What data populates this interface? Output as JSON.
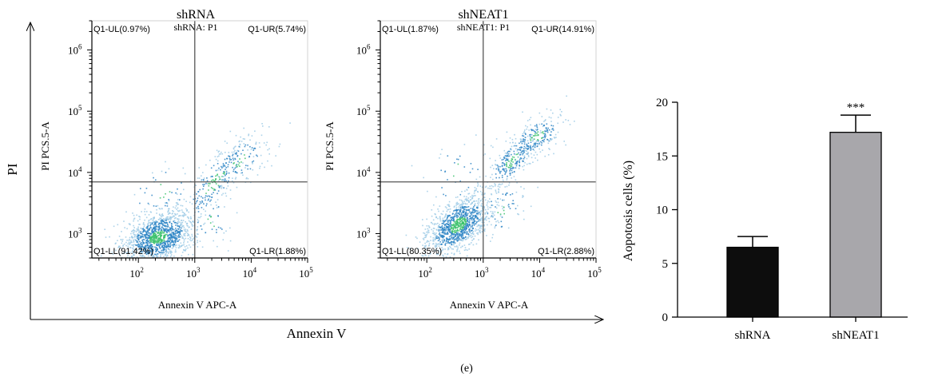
{
  "panel_label": "(e)",
  "outer_axes": {
    "ylabel": "PI",
    "xlabel": "Annexin V"
  },
  "colors": {
    "axis": "#000000",
    "bar_shrna": "#0d0d0d",
    "bar_shneat1": "#a8a7ab",
    "dots_light": "#9fcbe6",
    "dots_mid": "#2f86c5",
    "dots_dense": "#3cc26c",
    "gate_line": "#555555"
  },
  "chart_data": [
    {
      "type": "scatter",
      "title": "shRNA",
      "subtitle": "shRNA: P1",
      "xlabel": "Annexin V APC-A",
      "ylabel": "PI PCS.5-A",
      "x_scale": "log",
      "y_scale": "log",
      "xlim": [
        15,
        100000
      ],
      "ylim": [
        400,
        3000000
      ],
      "x_ticks": [
        {
          "base": "10",
          "exp": "2"
        },
        {
          "base": "10",
          "exp": "3"
        },
        {
          "base": "10",
          "exp": "4"
        },
        {
          "base": "10",
          "exp": "5"
        }
      ],
      "y_ticks": [
        {
          "base": "10",
          "exp": "3"
        },
        {
          "base": "10",
          "exp": "4"
        },
        {
          "base": "10",
          "exp": "5"
        },
        {
          "base": "10",
          "exp": "6"
        }
      ],
      "gate": {
        "x": 1000,
        "y": 7000
      },
      "quadrants": {
        "UL": "Q1-UL(0.97%)",
        "UR": "Q1-UR(5.74%)",
        "LL": "Q1-LL(91.42%)",
        "LR": "Q1-LR(1.88%)"
      },
      "quadrant_percent": {
        "UL": 0.97,
        "UR": 5.74,
        "LL": 91.42,
        "LR": 1.88
      },
      "population": [
        {
          "n": 1300,
          "cx": 2.35,
          "cy": 2.95,
          "sx": 0.32,
          "sy": 0.22,
          "r": 0.3
        },
        {
          "n": 220,
          "cx": 3.35,
          "cy": 3.85,
          "sx": 0.35,
          "sy": 0.38,
          "r": 0.8
        },
        {
          "n": 140,
          "cx": 3.8,
          "cy": 4.2,
          "sx": 0.28,
          "sy": 0.22,
          "r": 0.5
        },
        {
          "n": 40,
          "cx": 2.4,
          "cy": 3.7,
          "sx": 0.35,
          "sy": 0.25,
          "r": 0.2
        },
        {
          "n": 40,
          "cx": 3.3,
          "cy": 3.2,
          "sx": 0.2,
          "sy": 0.2,
          "r": 0.2
        }
      ]
    },
    {
      "type": "scatter",
      "title": "shNEAT1",
      "subtitle": "shNEAT1: P1",
      "xlabel": "Annexin V APC-A",
      "ylabel": "PI PCS.5-A",
      "x_scale": "log",
      "y_scale": "log",
      "xlim": [
        15,
        100000
      ],
      "ylim": [
        400,
        3000000
      ],
      "x_ticks": [
        {
          "base": "10",
          "exp": "2"
        },
        {
          "base": "10",
          "exp": "3"
        },
        {
          "base": "10",
          "exp": "4"
        },
        {
          "base": "10",
          "exp": "5"
        }
      ],
      "y_ticks": [
        {
          "base": "10",
          "exp": "3"
        },
        {
          "base": "10",
          "exp": "4"
        },
        {
          "base": "10",
          "exp": "5"
        },
        {
          "base": "10",
          "exp": "6"
        }
      ],
      "gate": {
        "x": 1000,
        "y": 7000
      },
      "quadrants": {
        "UL": "Q1-UL(1.87%)",
        "UR": "Q1-UR(14.91%)",
        "LL": "Q1-LL(80.35%)",
        "LR": "Q1-LR(2.88%)"
      },
      "quadrant_percent": {
        "UL": 1.87,
        "UR": 14.91,
        "LL": 80.35,
        "LR": 2.88
      },
      "population": [
        {
          "n": 1150,
          "cx": 2.55,
          "cy": 3.15,
          "sx": 0.3,
          "sy": 0.26,
          "r": 0.55
        },
        {
          "n": 260,
          "cx": 3.5,
          "cy": 4.2,
          "sx": 0.25,
          "sy": 0.25,
          "r": 0.75
        },
        {
          "n": 200,
          "cx": 3.95,
          "cy": 4.6,
          "sx": 0.25,
          "sy": 0.18,
          "r": 0.5
        },
        {
          "n": 40,
          "cx": 2.5,
          "cy": 4.0,
          "sx": 0.35,
          "sy": 0.3,
          "r": 0.2
        },
        {
          "n": 60,
          "cx": 3.3,
          "cy": 3.4,
          "sx": 0.25,
          "sy": 0.25,
          "r": 0.3
        }
      ]
    },
    {
      "type": "bar",
      "title": "",
      "xlabel": "",
      "ylabel": "Aopotosis cells (%)",
      "categories": [
        "shRNA",
        "shNEAT1"
      ],
      "values": [
        6.5,
        17.2
      ],
      "errors": [
        1.0,
        1.6
      ],
      "bar_colors": [
        "#0d0d0d",
        "#a8a7ab"
      ],
      "significance": [
        "",
        "***"
      ],
      "ylim": [
        0,
        20
      ],
      "yticks": [
        "0",
        "5",
        "10",
        "15",
        "20"
      ],
      "grid": false
    }
  ]
}
